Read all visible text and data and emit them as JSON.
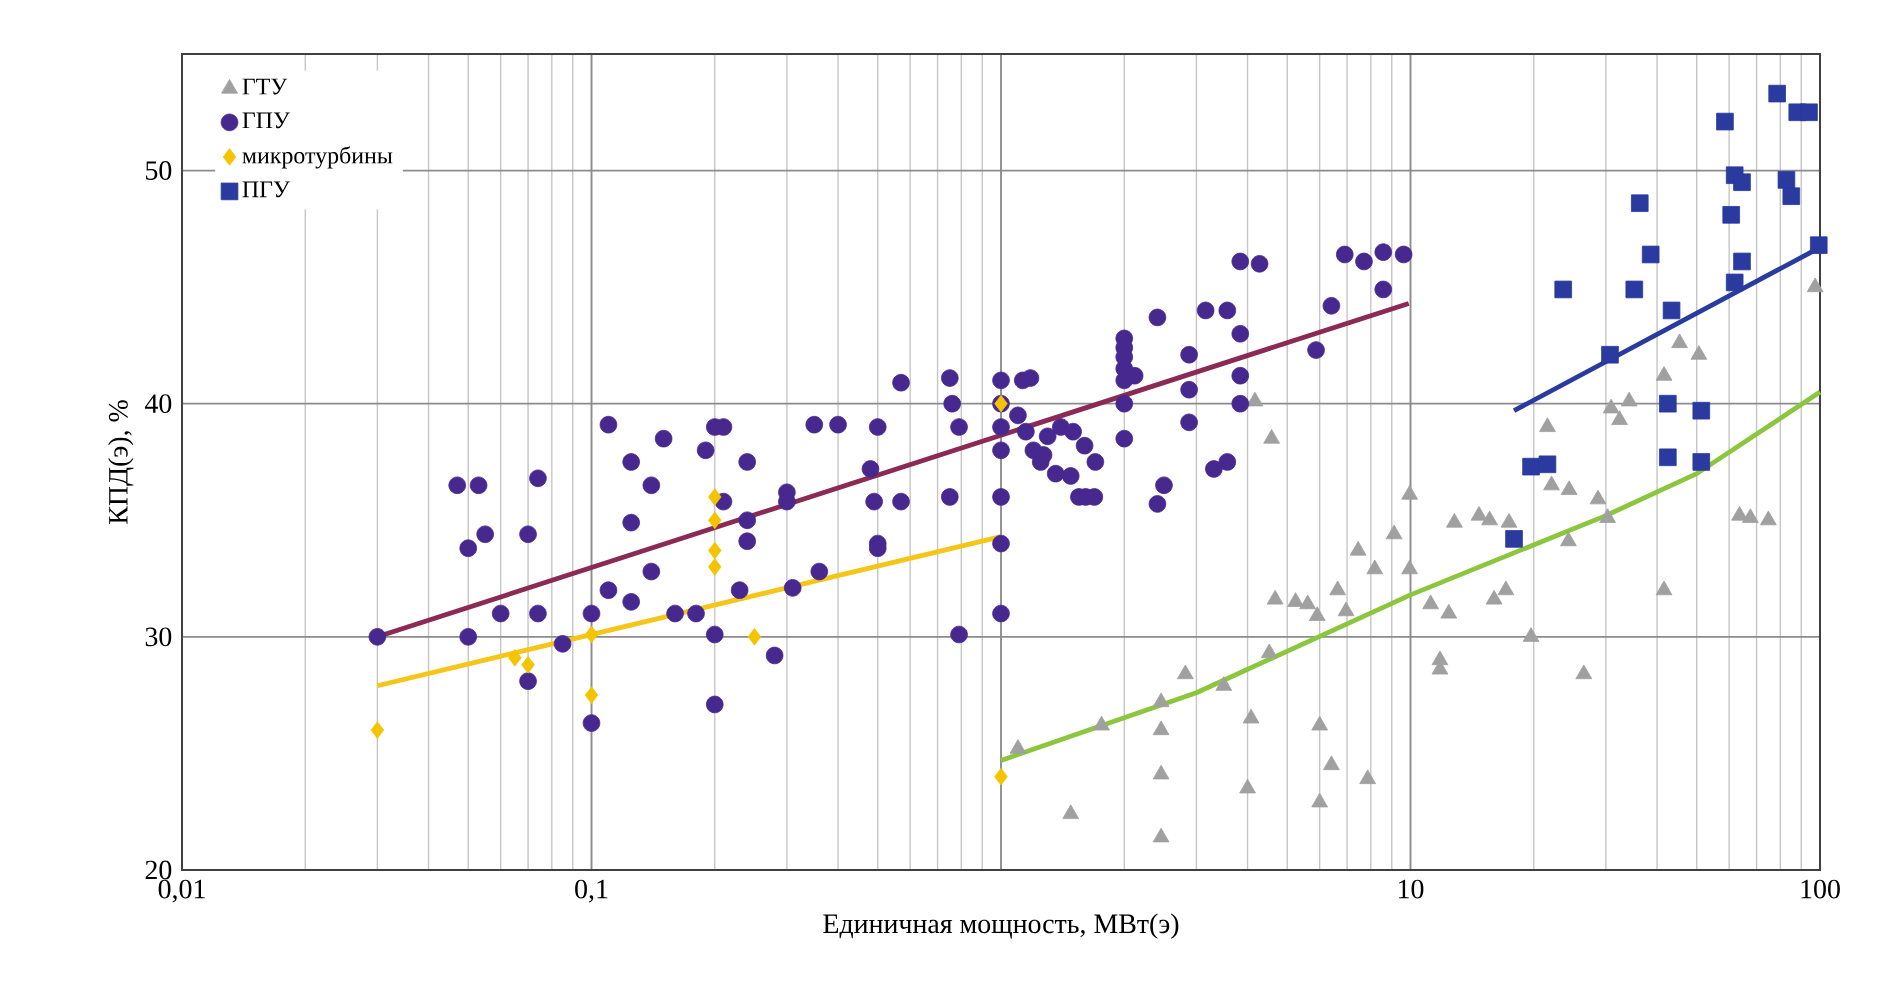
{
  "chart_data": {
    "type": "scatter",
    "xlabel": "Единичная мощность, МВт(э)",
    "ylabel": "КПД(э), %",
    "log": "x",
    "grid": true,
    "legend": "top left",
    "xlim": [
      0.01,
      100
    ],
    "ylim": [
      20,
      55
    ],
    "xticks": [
      {
        "value": 0.01,
        "label": "0,01"
      },
      {
        "value": 0.1,
        "label": "0,1"
      },
      {
        "value": 1,
        "label": null
      },
      10,
      100
    ],
    "yticks": [
      20,
      30,
      40,
      50
    ],
    "series": [
      {
        "name": "ГТУ",
        "marker": "triangle",
        "color": "#a0a0a0",
        "x": [
          1.1,
          1.48,
          1.76,
          2.46,
          2.46,
          2.46,
          2.46,
          2.82,
          3.5,
          4.0,
          4.08,
          4.17,
          4.52,
          4.58,
          4.67,
          5.24,
          5.61,
          5.92,
          6.0,
          6.0,
          6.41,
          6.64,
          6.96,
          7.45,
          7.86,
          8.18,
          9.12,
          9.95,
          9.95,
          11.2,
          11.8,
          11.8,
          12.4,
          12.8,
          14.7,
          15.6,
          16,
          17.1,
          17.4,
          19.7,
          21.6,
          22.1,
          24.3,
          24.4,
          26.5,
          28.7,
          30.3,
          30.9,
          32.4,
          34.2,
          41.6,
          41.6,
          45.4,
          50.6,
          63.6,
          67.6,
          74.8,
          97.3
        ],
        "values": [
          25.2,
          22.4,
          26.2,
          27.2,
          26,
          24.1,
          21.4,
          28.4,
          27.9,
          23.5,
          26.5,
          40.1,
          29.3,
          38.5,
          31.6,
          31.5,
          31.4,
          30.9,
          26.2,
          22.9,
          24.5,
          32,
          31.1,
          33.7,
          23.9,
          32.9,
          34.4,
          36.1,
          32.9,
          31.4,
          29,
          28.6,
          31,
          34.9,
          35.2,
          35,
          31.6,
          32,
          34.9,
          30,
          39,
          36.5,
          34.1,
          36.3,
          28.4,
          35.9,
          35.1,
          39.8,
          39.3,
          40.1,
          32,
          41.2,
          42.6,
          42.1,
          35.2,
          35.1,
          35,
          45
        ]
      },
      {
        "name": "ГПУ",
        "marker": "circle",
        "color": "#47288f",
        "x": [
          0.03,
          0.047,
          0.053,
          0.05,
          0.055,
          0.05,
          0.06,
          0.07,
          0.07,
          0.074,
          0.074,
          0.085,
          0.1,
          0.1,
          0.11,
          0.11,
          0.125,
          0.125,
          0.125,
          0.14,
          0.14,
          0.15,
          0.16,
          0.18,
          0.19,
          0.2,
          0.21,
          0.2,
          0.2,
          0.21,
          0.24,
          0.24,
          0.24,
          0.23,
          0.28,
          0.3,
          0.3,
          0.31,
          0.35,
          0.4,
          0.36,
          0.48,
          0.49,
          0.5,
          0.5,
          0.5,
          0.57,
          0.57,
          0.75,
          0.76,
          0.75,
          0.79,
          0.79,
          1,
          1,
          1,
          1,
          1,
          1,
          1,
          1.13,
          1.18,
          1.1,
          1.15,
          1.27,
          1.36,
          1.48,
          1.55,
          1.61,
          1.69,
          1.6,
          1.7,
          1.2,
          1.25,
          1.3,
          1.4,
          1.5,
          2,
          2,
          2,
          2,
          2,
          2,
          2,
          2.12,
          2.41,
          2.41,
          2.5,
          2.88,
          2.88,
          2.88,
          3.16,
          3.57,
          3.31,
          3.57,
          3.84,
          3.84,
          3.84,
          3.84,
          4.28,
          5.88,
          6.41,
          6.91,
          7.7,
          8.58,
          9.62,
          8.58
        ],
        "values": [
          30,
          36.5,
          36.5,
          33.8,
          34.4,
          30,
          31,
          34.4,
          28.1,
          36.8,
          31,
          29.7,
          31,
          26.3,
          39.1,
          32,
          34.9,
          37.5,
          31.5,
          36.5,
          32.8,
          38.5,
          31,
          31,
          38,
          39,
          39,
          30.1,
          27.1,
          35.8,
          37.5,
          35,
          34.1,
          32,
          29.2,
          36.2,
          35.8,
          32.1,
          39.1,
          39.1,
          32.8,
          37.2,
          35.8,
          39,
          34,
          33.8,
          35.8,
          40.9,
          41.1,
          40,
          36,
          39,
          30.1,
          41,
          40,
          39,
          38,
          36,
          34,
          31,
          41,
          41.1,
          39.5,
          38.8,
          37.8,
          37,
          36.9,
          36,
          36,
          36,
          38.2,
          37.5,
          38,
          37.5,
          38.6,
          39,
          38.8,
          38.5,
          40,
          42.8,
          42.4,
          42,
          41.5,
          41,
          41.2,
          43.7,
          35.7,
          36.5,
          42.1,
          40.6,
          39.2,
          44,
          44,
          37.2,
          37.5,
          41.2,
          43,
          40,
          46.1,
          46,
          42.3,
          44.2,
          46.4,
          46.1,
          46.5,
          46.4,
          44.9
        ]
      },
      {
        "name": "микротурбины",
        "marker": "diamond",
        "color": "#f5c400",
        "x": [
          0.03,
          0.065,
          0.07,
          0.1,
          0.1,
          0.2,
          0.2,
          0.2,
          0.2,
          0.25,
          1,
          1
        ],
        "values": [
          26,
          29.1,
          28.8,
          30.1,
          27.5,
          36,
          35,
          33.7,
          33,
          30,
          40,
          24
        ]
      },
      {
        "name": "ПГУ",
        "marker": "square",
        "color": "#2a3a9e",
        "x": [
          17.9,
          19.7,
          21.6,
          23.6,
          30.7,
          35.2,
          36.3,
          38.6,
          42.5,
          42.5,
          43.4,
          51.3,
          51.3,
          58.6,
          60.7,
          61.9,
          64.5,
          61.9,
          64.5,
          78.6,
          82.8,
          85.1,
          88,
          94,
          99.3
        ],
        "values": [
          34.2,
          37.3,
          37.4,
          44.9,
          42.1,
          44.9,
          48.6,
          46.4,
          40,
          37.7,
          44,
          39.7,
          37.5,
          52.1,
          48.1,
          49.8,
          49.5,
          45.2,
          46.1,
          53.3,
          49.6,
          48.9,
          52.5,
          52.5,
          46.8
        ]
      },
      {
        "type": "line",
        "color": "#8b2a55",
        "x": [
          0.03,
          9.9
        ],
        "values": [
          30,
          44.3
        ]
      },
      {
        "type": "line",
        "color": "#f5c518",
        "x": [
          0.03,
          1
        ],
        "values": [
          27.9,
          34.3
        ]
      },
      {
        "type": "line",
        "color": "#8cc63f",
        "x": [
          1,
          3,
          10,
          30,
          50,
          100
        ],
        "values": [
          24.7,
          27.6,
          31.8,
          35.2,
          37,
          40.5
        ]
      },
      {
        "type": "line",
        "color": "#2a3a9e",
        "x": [
          17.9,
          100
        ],
        "values": [
          39.7,
          46.7
        ]
      }
    ]
  }
}
